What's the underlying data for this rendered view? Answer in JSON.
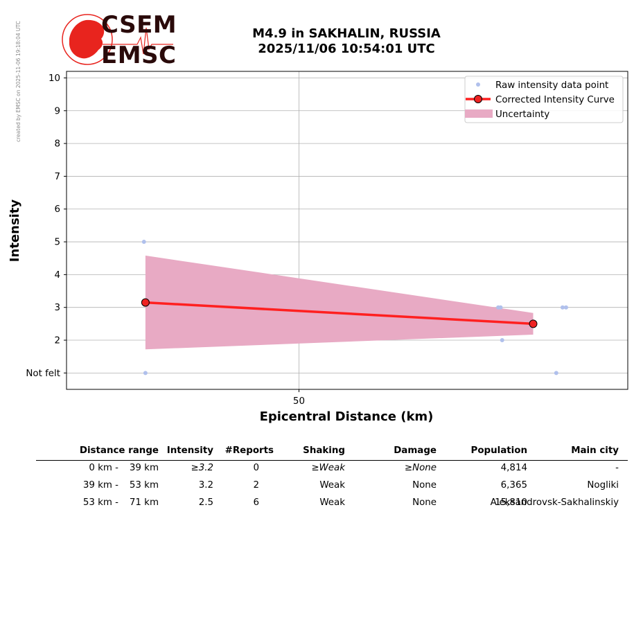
{
  "side_note": "created by EMSC on 2025-11-06 19:18:04 UTC",
  "logo": {
    "top": "CSEM",
    "bottom": "EMSC",
    "color": "#e8241e"
  },
  "title": {
    "line1": "M4.9 in SAKHALIN, RUSSIA",
    "line2": "2025/11/06 10:54:01 UTC"
  },
  "chart_data": {
    "type": "scatter",
    "xlabel": "Epicentral Distance (km)",
    "ylabel": "Intensity",
    "x_scale": "log",
    "xlim": [
      33,
      90
    ],
    "ylim": [
      0.5,
      10.2
    ],
    "x_ticks": [
      {
        "value": 50,
        "label": "50"
      }
    ],
    "y_ticks": [
      {
        "value": 1,
        "label": "Not felt"
      },
      {
        "value": 2,
        "label": "2"
      },
      {
        "value": 3,
        "label": "3"
      },
      {
        "value": 4,
        "label": "4"
      },
      {
        "value": 5,
        "label": "5"
      },
      {
        "value": 6,
        "label": "6"
      },
      {
        "value": 7,
        "label": "7"
      },
      {
        "value": 8,
        "label": "8"
      },
      {
        "value": 9,
        "label": "9"
      },
      {
        "value": 10,
        "label": "10"
      }
    ],
    "grid": true,
    "legend_position": "top-right",
    "legend": [
      "Raw intensity data point",
      "Corrected Intensity Curve",
      "Uncertainty"
    ],
    "colors": {
      "raw": "#b0c0ec",
      "curve": "#ff2020",
      "marker_fill": "#ee2222",
      "uncertainty": "#e8aac4"
    },
    "raw_points": [
      {
        "x": 37.9,
        "y": 5
      },
      {
        "x": 38.0,
        "y": 1
      },
      {
        "x": 71.4,
        "y": 3
      },
      {
        "x": 71.7,
        "y": 3
      },
      {
        "x": 71.9,
        "y": 2
      },
      {
        "x": 80.1,
        "y": 3
      },
      {
        "x": 80.6,
        "y": 3
      },
      {
        "x": 79.2,
        "y": 1
      }
    ],
    "curve": [
      {
        "x": 38.0,
        "y": 3.15
      },
      {
        "x": 76.0,
        "y": 2.5
      }
    ],
    "uncertainty": [
      {
        "x": 38.0,
        "lower": 1.72,
        "upper": 4.58
      },
      {
        "x": 76.0,
        "lower": 2.17,
        "upper": 2.83
      }
    ]
  },
  "table": {
    "headers": [
      "Distance range",
      "Intensity",
      "#Reports",
      "Shaking",
      "Damage",
      "Population",
      "Main city"
    ],
    "rows": [
      {
        "range_from": "0 km -",
        "range_to": "39 km",
        "intensity": "≥3.2",
        "reports": "0",
        "shaking": "≥Weak",
        "damage": "≥None",
        "population": "4,814",
        "city": "-"
      },
      {
        "range_from": "39 km -",
        "range_to": "53 km",
        "intensity": "3.2",
        "reports": "2",
        "shaking": "Weak",
        "damage": "None",
        "population": "6,365",
        "city": "Nogliki"
      },
      {
        "range_from": "53 km -",
        "range_to": "71 km",
        "intensity": "2.5",
        "reports": "6",
        "shaking": "Weak",
        "damage": "None",
        "population": "15,810",
        "city": "Aleksandrovsk-Sakhalinskiy"
      }
    ]
  }
}
